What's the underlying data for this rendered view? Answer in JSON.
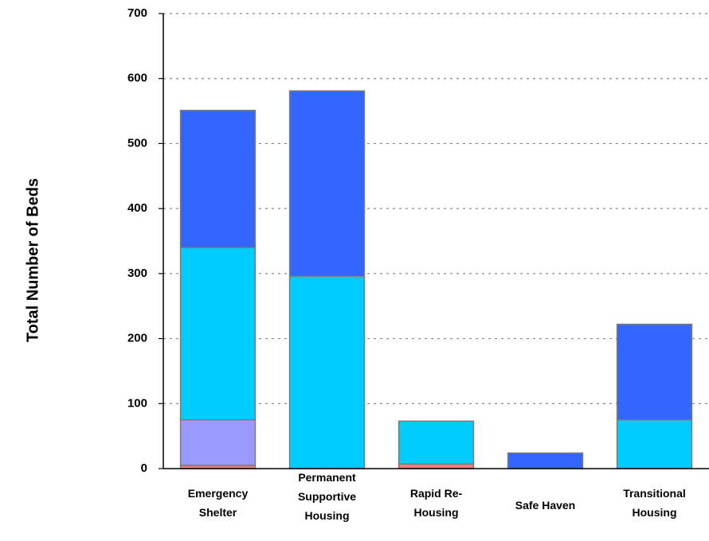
{
  "chart_data": {
    "type": "bar",
    "stacked": true,
    "ylabel": "Total Number of Beds",
    "xlabel": "",
    "ylim": [
      0,
      700
    ],
    "yticks": [
      0,
      100,
      200,
      300,
      400,
      500,
      600,
      700
    ],
    "grid": true,
    "categories": [
      [
        "Emergency",
        "Shelter"
      ],
      [
        "Permanent",
        "Supportive",
        "Housing"
      ],
      [
        "Rapid Re-",
        "Housing"
      ],
      [
        "Safe Haven"
      ],
      [
        "Transitional",
        "Housing"
      ]
    ],
    "series": [
      {
        "values": [
          5,
          0,
          7,
          0,
          0
        ],
        "color": "#f08080"
      },
      {
        "values": [
          70,
          0,
          0,
          0,
          0
        ],
        "color": "#9999ff"
      },
      {
        "values": [
          265,
          296,
          66,
          0,
          75
        ],
        "color": "#00ccff"
      },
      {
        "values": [
          211,
          285,
          0,
          24,
          147
        ],
        "color": "#3366ff"
      }
    ]
  }
}
